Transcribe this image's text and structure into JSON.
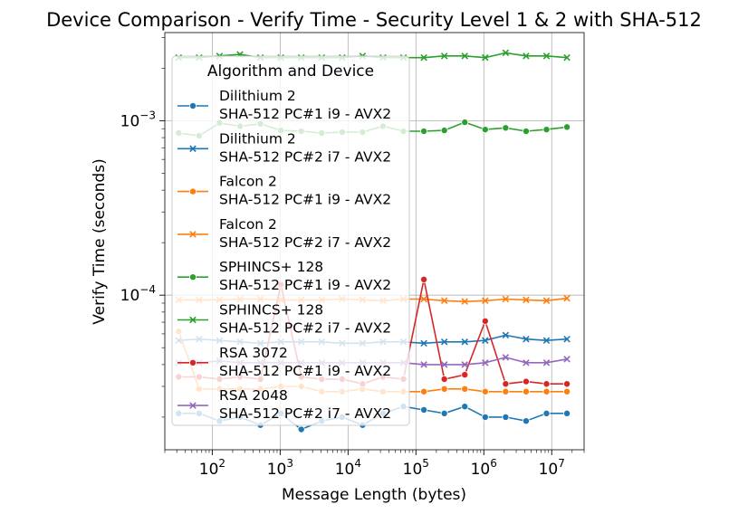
{
  "chart_data": {
    "type": "line",
    "title": "Device Comparison - Verify Time - Security Level 1 & 2 with SHA-512",
    "xlabel": "Message Length (bytes)",
    "ylabel": "Verify Time (seconds)",
    "xscale": "log",
    "yscale": "log",
    "xlim": [
      20,
      30000000
    ],
    "ylim": [
      1.3e-05,
      0.0032
    ],
    "grid": true,
    "x_ticks": [
      {
        "label_base": "10",
        "label_exp": "2",
        "value": 100
      },
      {
        "label_base": "10",
        "label_exp": "3",
        "value": 1000
      },
      {
        "label_base": "10",
        "label_exp": "4",
        "value": 10000
      },
      {
        "label_base": "10",
        "label_exp": "5",
        "value": 100000
      },
      {
        "label_base": "10",
        "label_exp": "6",
        "value": 1000000
      },
      {
        "label_base": "10",
        "label_exp": "7",
        "value": 10000000
      }
    ],
    "y_ticks": [
      {
        "label_base": "10",
        "label_exp": "−4",
        "value": 0.0001
      },
      {
        "label_base": "10",
        "label_exp": "−3",
        "value": 0.001
      }
    ],
    "legend": {
      "title": "Algorithm and Device",
      "placement": "upper-left"
    },
    "x": [
      32,
      64,
      128,
      256,
      512,
      1024,
      2048,
      4096,
      8192,
      16384,
      32768,
      65536,
      131072,
      262144,
      524288,
      1048576,
      2097152,
      4194304,
      8388608,
      16777216
    ],
    "series": [
      {
        "line1": "Dilithium 2",
        "line2": "SHA-512 PC#1 i9 - AVX2",
        "color": "#1f77b4",
        "marker": "circle",
        "values": [
          2.1e-05,
          2.1e-05,
          1.9e-05,
          2e-05,
          1.8e-05,
          2.1e-05,
          1.7e-05,
          1.9e-05,
          2e-05,
          1.8e-05,
          2.1e-05,
          2.3e-05,
          2.2e-05,
          2.1e-05,
          2.3e-05,
          2e-05,
          2e-05,
          1.9e-05,
          2.1e-05,
          2.1e-05
        ]
      },
      {
        "line1": "Dilithium 2",
        "line2": "SHA-512 PC#2 i7 - AVX2",
        "color": "#1f77b4",
        "marker": "x",
        "values": [
          5.5e-05,
          5.6e-05,
          5.5e-05,
          5.4e-05,
          5.3e-05,
          5.4e-05,
          5.4e-05,
          5.4e-05,
          5.3e-05,
          5.3e-05,
          5.4e-05,
          5.4e-05,
          5.3e-05,
          5.4e-05,
          5.4e-05,
          5.5e-05,
          5.9e-05,
          5.6e-05,
          5.5e-05,
          5.6e-05
        ]
      },
      {
        "line1": "Falcon 2",
        "line2": "SHA-512 PC#1 i9 - AVX2",
        "color": "#ff7f0e",
        "marker": "circle",
        "values": [
          6.2e-05,
          2.9e-05,
          2.9e-05,
          2.9e-05,
          2.9e-05,
          3e-05,
          3e-05,
          2.8e-05,
          2.8e-05,
          2.9e-05,
          2.8e-05,
          2.8e-05,
          2.8e-05,
          2.9e-05,
          2.9e-05,
          2.8e-05,
          2.8e-05,
          2.8e-05,
          2.8e-05,
          2.8e-05
        ]
      },
      {
        "line1": "Falcon 2",
        "line2": "SHA-512 PC#2 i7 - AVX2",
        "color": "#ff7f0e",
        "marker": "x",
        "values": [
          9.4e-05,
          9.4e-05,
          9.4e-05,
          9.5e-05,
          9.5e-05,
          9.4e-05,
          9.4e-05,
          9.4e-05,
          9.5e-05,
          9.4e-05,
          9.3e-05,
          9.5e-05,
          9.5e-05,
          9.3e-05,
          9.2e-05,
          9.3e-05,
          9.5e-05,
          9.4e-05,
          9.3e-05,
          9.6e-05
        ]
      },
      {
        "line1": "SPHINCS+ 128",
        "line2": "SHA-512 PC#1 i9 - AVX2",
        "color": "#2ca02c",
        "marker": "circle",
        "values": [
          0.00085,
          0.00082,
          0.00097,
          0.00093,
          0.00096,
          0.00088,
          0.00087,
          0.00085,
          0.00086,
          0.00086,
          0.00093,
          0.00087,
          0.00087,
          0.00088,
          0.00098,
          0.00089,
          0.00091,
          0.00087,
          0.00089,
          0.00092
        ]
      },
      {
        "line1": "SPHINCS+ 128",
        "line2": "SHA-512 PC#2 i7 - AVX2",
        "color": "#2ca02c",
        "marker": "x",
        "values": [
          0.0023,
          0.0023,
          0.00235,
          0.0024,
          0.0023,
          0.0023,
          0.0023,
          0.0023,
          0.0023,
          0.00235,
          0.0023,
          0.0023,
          0.0023,
          0.00235,
          0.00235,
          0.0023,
          0.00245,
          0.00235,
          0.00235,
          0.0023
        ]
      },
      {
        "line1": "RSA 3072",
        "line2": "SHA-512 PC#1 i9 - AVX2",
        "color": "#d62728",
        "marker": "circle",
        "values": [
          3.4e-05,
          3.4e-05,
          3.3e-05,
          3.4e-05,
          3.3e-05,
          0.000115,
          3.4e-05,
          3.3e-05,
          3.3e-05,
          3.1e-05,
          3.4e-05,
          3.3e-05,
          0.000123,
          3.3e-05,
          3.5e-05,
          7.1e-05,
          3.1e-05,
          3.2e-05,
          3.1e-05,
          3.1e-05
        ]
      },
      {
        "line1": "RSA 2048",
        "line2": "SHA-512 PC#2 i7 - AVX2",
        "color": "#9467bd",
        "marker": "x",
        "values": [
          4.1e-05,
          4.1e-05,
          4.2e-05,
          4.1e-05,
          4.1e-05,
          4.1e-05,
          4.1e-05,
          4.1e-05,
          4.1e-05,
          4.1e-05,
          4.1e-05,
          4.1e-05,
          4e-05,
          4e-05,
          4e-05,
          4.1e-05,
          4.4e-05,
          4.1e-05,
          4.1e-05,
          4.3e-05
        ]
      }
    ]
  }
}
